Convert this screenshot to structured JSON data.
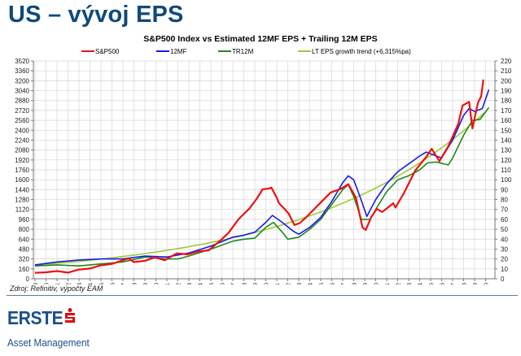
{
  "page": {
    "title": "US – vývoj EPS",
    "source": "Zdroj: Refinitiv, výpočty EAM",
    "logo_text": "ERSTE",
    "logo_subtitle": "Asset Management"
  },
  "chart_data": {
    "type": "line",
    "title": "S&P500 Index vs Estimated 12MF EPS + Trailing 12M EPS",
    "legend_position": "top",
    "grid": true,
    "x_range": [
      1979,
      2020.5
    ],
    "x_tick_labels": [
      "I-79",
      "I-80",
      "I-81",
      "I-82",
      "I-83",
      "I-84",
      "I-85",
      "I-86",
      "I-87",
      "I-88",
      "I-89",
      "I-90",
      "I-91",
      "I-92",
      "I-93",
      "I-94",
      "I-95",
      "I-96",
      "I-97",
      "I-98",
      "I-99",
      "I-00",
      "I-01",
      "I-02",
      "I-03",
      "I-04",
      "I-05",
      "I-06",
      "I-07",
      "I-08",
      "I-09",
      "I-10",
      "I-11",
      "I-12",
      "I-13",
      "I-14",
      "I-15",
      "I-16",
      "I-17",
      "I-18",
      "I-19",
      "I-20"
    ],
    "y_left": {
      "range": [
        0,
        3520
      ],
      "ticks": [
        0,
        160,
        320,
        480,
        640,
        800,
        960,
        1120,
        1280,
        1440,
        1600,
        1760,
        1920,
        2080,
        2240,
        2400,
        2560,
        2720,
        2880,
        3040,
        3200,
        3360,
        3520
      ]
    },
    "y_right": {
      "range": [
        0,
        220
      ],
      "ticks": [
        0,
        10,
        20,
        30,
        40,
        50,
        60,
        70,
        80,
        90,
        100,
        110,
        120,
        130,
        140,
        150,
        160,
        170,
        180,
        190,
        200,
        210,
        220
      ]
    },
    "series": [
      {
        "name": "S&P500",
        "axis": "left",
        "color": "#ee1111",
        "points": [
          [
            1979,
            96
          ],
          [
            1980,
            105
          ],
          [
            1981,
            125
          ],
          [
            1982,
            100
          ],
          [
            1983,
            150
          ],
          [
            1984,
            165
          ],
          [
            1984.9,
            214
          ],
          [
            1986,
            240
          ],
          [
            1987.5,
            330
          ],
          [
            1988,
            271
          ],
          [
            1989,
            290
          ],
          [
            1989.9,
            346
          ],
          [
            1990.8,
            300
          ],
          [
            1991.9,
            411
          ],
          [
            1992.9,
            394
          ],
          [
            1993.8,
            440
          ],
          [
            1994.8,
            460
          ],
          [
            1995.8,
            608
          ],
          [
            1996.6,
            740
          ],
          [
            1997.5,
            960
          ],
          [
            1998.5,
            1134
          ],
          [
            1999.2,
            1300
          ],
          [
            1999.7,
            1445
          ],
          [
            2000.3,
            1460
          ],
          [
            2000.5,
            1475
          ],
          [
            2001,
            1310
          ],
          [
            2001.2,
            1220
          ],
          [
            2001.7,
            1130
          ],
          [
            2002.1,
            1050
          ],
          [
            2002.6,
            870
          ],
          [
            2003.1,
            900
          ],
          [
            2003.7,
            1000
          ],
          [
            2004.7,
            1180
          ],
          [
            2005.9,
            1395
          ],
          [
            2006.8,
            1450
          ],
          [
            2007.5,
            1530
          ],
          [
            2008.2,
            1310
          ],
          [
            2008.8,
            830
          ],
          [
            2009.1,
            790
          ],
          [
            2009.6,
            1000
          ],
          [
            2010.1,
            1130
          ],
          [
            2010.6,
            1080
          ],
          [
            2011.6,
            1220
          ],
          [
            2011.8,
            1150
          ],
          [
            2012.6,
            1395
          ],
          [
            2013.6,
            1750
          ],
          [
            2014.6,
            1970
          ],
          [
            2015.1,
            2100
          ],
          [
            2015.8,
            1900
          ],
          [
            2016.6,
            2140
          ],
          [
            2017.5,
            2500
          ],
          [
            2017.9,
            2800
          ],
          [
            2018.5,
            2860
          ],
          [
            2018.8,
            2430
          ],
          [
            2019.3,
            2840
          ],
          [
            2019.6,
            2950
          ],
          [
            2019.8,
            3220
          ]
        ]
      },
      {
        "name": "12MF",
        "axis": "right",
        "color": "#1a1aee",
        "points": [
          [
            1979,
            14
          ],
          [
            1981,
            17
          ],
          [
            1983,
            19
          ],
          [
            1985,
            20
          ],
          [
            1987,
            20
          ],
          [
            1989,
            23
          ],
          [
            1991,
            22
          ],
          [
            1993,
            26
          ],
          [
            1995,
            33
          ],
          [
            1997,
            42
          ],
          [
            1998,
            44
          ],
          [
            1999,
            47
          ],
          [
            2000,
            57
          ],
          [
            2000.6,
            64
          ],
          [
            2001.5,
            57
          ],
          [
            2002.5,
            48
          ],
          [
            2003,
            45
          ],
          [
            2004,
            52
          ],
          [
            2005,
            62
          ],
          [
            2006,
            78
          ],
          [
            2007,
            97
          ],
          [
            2007.5,
            104
          ],
          [
            2008,
            100
          ],
          [
            2008.5,
            85
          ],
          [
            2009.2,
            63
          ],
          [
            2010,
            80
          ],
          [
            2011,
            96
          ],
          [
            2012,
            108
          ],
          [
            2013,
            116
          ],
          [
            2014,
            124
          ],
          [
            2014.6,
            128
          ],
          [
            2015.5,
            124
          ],
          [
            2016,
            122
          ],
          [
            2017,
            140
          ],
          [
            2018,
            165
          ],
          [
            2018.5,
            172
          ],
          [
            2019,
            169
          ],
          [
            2019.7,
            172
          ],
          [
            2020.3,
            191
          ]
        ]
      },
      {
        "name": "TR12M",
        "axis": "right",
        "color": "#1e8a1e",
        "points": [
          [
            1979,
            13
          ],
          [
            1981,
            14
          ],
          [
            1983,
            13
          ],
          [
            1985,
            15
          ],
          [
            1987,
            17
          ],
          [
            1989,
            22
          ],
          [
            1991,
            20
          ],
          [
            1992,
            20
          ],
          [
            1993,
            23
          ],
          [
            1995,
            30
          ],
          [
            1997,
            38
          ],
          [
            1998,
            40
          ],
          [
            1999,
            41
          ],
          [
            2000,
            52
          ],
          [
            2000.7,
            57
          ],
          [
            2001.5,
            47
          ],
          [
            2002,
            40
          ],
          [
            2003,
            42
          ],
          [
            2004,
            50
          ],
          [
            2005,
            60
          ],
          [
            2006,
            75
          ],
          [
            2007,
            90
          ],
          [
            2007.5,
            95
          ],
          [
            2008,
            83
          ],
          [
            2008.7,
            60
          ],
          [
            2009.5,
            60
          ],
          [
            2010,
            70
          ],
          [
            2011,
            88
          ],
          [
            2012,
            100
          ],
          [
            2013,
            104
          ],
          [
            2014,
            110
          ],
          [
            2014.7,
            117
          ],
          [
            2015.5,
            118
          ],
          [
            2016.6,
            115
          ],
          [
            2017,
            122
          ],
          [
            2018,
            145
          ],
          [
            2018.8,
            160
          ],
          [
            2019.5,
            161
          ],
          [
            2020.3,
            173
          ]
        ]
      },
      {
        "name": "LT EPS growth trend (+6,315%pa)",
        "axis": "right",
        "color": "#9acd32",
        "growth_rate_pa": 0.06315,
        "start": [
          1979,
          13.8
        ],
        "end": [
          2020.3,
          172
        ]
      }
    ]
  }
}
